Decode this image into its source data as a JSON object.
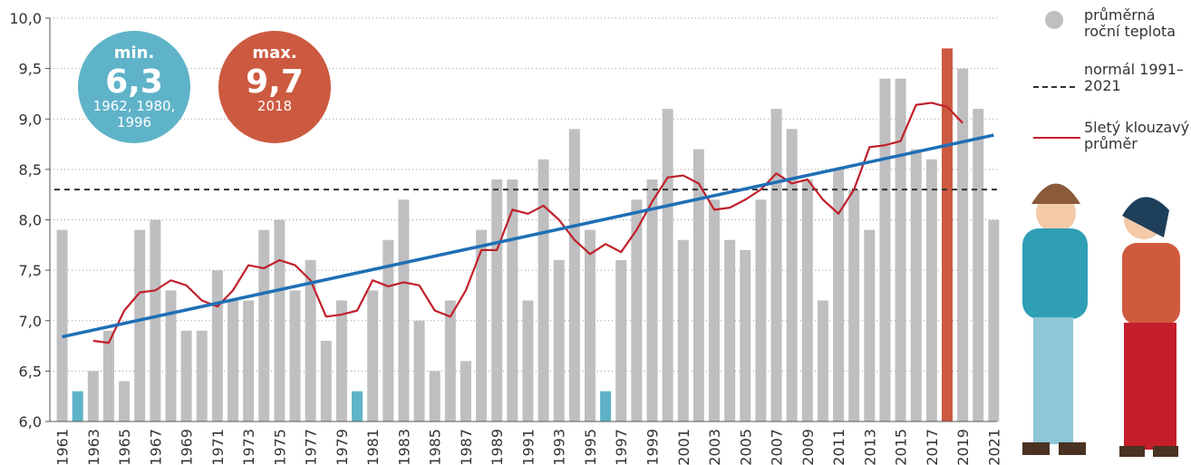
{
  "chart_data": {
    "type": "bar",
    "categories": [
      "1961",
      null,
      "1963",
      null,
      "1965",
      null,
      "1967",
      null,
      "1969",
      null,
      "1971",
      null,
      "1973",
      null,
      "1975",
      null,
      "1977",
      null,
      "1979",
      null,
      "1981",
      null,
      "1983",
      null,
      "1985",
      null,
      "1987",
      null,
      "1989",
      null,
      "1991",
      null,
      "1993",
      null,
      "1995",
      null,
      "1997",
      null,
      "1999",
      null,
      "2001",
      null,
      "2003",
      null,
      "2005",
      null,
      "2007",
      null,
      "2009",
      null,
      "2011",
      null,
      "2013",
      null,
      "2015",
      null,
      "2017",
      null,
      "2019",
      null,
      "2021"
    ],
    "series": [
      {
        "name": "průměrná roční teplota",
        "color": "#bfbfc1",
        "colors": [
          "#bfbfc1",
          "#5fb3c8",
          "#bfbfc1",
          "#bfbfc1",
          "#bfbfc1",
          "#bfbfc1",
          "#bfbfc1",
          "#bfbfc1",
          "#bfbfc1",
          "#bfbfc1",
          "#bfbfc1",
          "#bfbfc1",
          "#bfbfc1",
          "#bfbfc1",
          "#bfbfc1",
          "#bfbfc1",
          "#bfbfc1",
          "#bfbfc1",
          "#bfbfc1",
          "#5fb3c8",
          "#bfbfc1",
          "#bfbfc1",
          "#bfbfc1",
          "#bfbfc1",
          "#bfbfc1",
          "#bfbfc1",
          "#bfbfc1",
          "#bfbfc1",
          "#bfbfc1",
          "#bfbfc1",
          "#bfbfc1",
          "#bfbfc1",
          "#bfbfc1",
          "#bfbfc1",
          "#bfbfc1",
          "#5fb3c8",
          "#bfbfc1",
          "#bfbfc1",
          "#bfbfc1",
          "#bfbfc1",
          "#bfbfc1",
          "#bfbfc1",
          "#bfbfc1",
          "#bfbfc1",
          "#bfbfc1",
          "#bfbfc1",
          "#bfbfc1",
          "#bfbfc1",
          "#bfbfc1",
          "#bfbfc1",
          "#bfbfc1",
          "#bfbfc1",
          "#bfbfc1",
          "#bfbfc1",
          "#bfbfc1",
          "#bfbfc1",
          "#bfbfc1",
          "#cc5a40",
          "#bfbfc1",
          "#bfbfc1",
          "#bfbfc1"
        ],
        "values": [
          7.9,
          6.3,
          6.5,
          6.9,
          6.4,
          7.9,
          8.0,
          7.3,
          6.9,
          6.9,
          7.5,
          7.2,
          7.2,
          7.9,
          8.0,
          7.3,
          7.6,
          6.8,
          7.2,
          6.3,
          7.3,
          7.8,
          8.2,
          7.0,
          6.5,
          7.2,
          6.6,
          7.9,
          8.4,
          8.4,
          7.2,
          8.6,
          7.6,
          8.9,
          7.9,
          6.3,
          7.6,
          8.2,
          8.4,
          9.1,
          7.8,
          8.7,
          8.2,
          7.8,
          7.7,
          8.2,
          9.1,
          8.9,
          8.4,
          7.2,
          8.5,
          8.3,
          7.9,
          9.4,
          9.4,
          8.7,
          8.6,
          9.7,
          9.5,
          9.1,
          8.0
        ]
      },
      {
        "name": "normál 1991–2021",
        "type": "hline",
        "color": "#333333",
        "value": 8.3
      },
      {
        "name": "5letý klouzavý průměr",
        "type": "line",
        "color": "#c0202a",
        "values": [
          null,
          null,
          6.8,
          6.78,
          7.1,
          7.28,
          7.3,
          7.4,
          7.35,
          7.2,
          7.14,
          7.3,
          7.55,
          7.52,
          7.6,
          7.55,
          7.4,
          7.04,
          7.06,
          7.1,
          7.4,
          7.34,
          7.38,
          7.35,
          7.1,
          7.04,
          7.3,
          7.7,
          7.7,
          8.1,
          8.06,
          8.14,
          8.0,
          7.8,
          7.66,
          7.76,
          7.68,
          7.9,
          8.18,
          8.42,
          8.44,
          8.36,
          8.1,
          8.12,
          8.2,
          8.3,
          8.46,
          8.36,
          8.4,
          8.2,
          8.06,
          8.3,
          8.72,
          8.74,
          8.78,
          9.14,
          9.16,
          9.12,
          8.96,
          null,
          null
        ]
      }
    ],
    "trend": {
      "color": "#1f6fb5",
      "x": [
        1961,
        2021
      ],
      "values": [
        6.84,
        8.84
      ]
    },
    "ylim": [
      6,
      10
    ],
    "yticks": [
      {
        "value": 6,
        "label": "6,0"
      },
      {
        "value": 6.5,
        "label": "6,5"
      },
      {
        "value": 7,
        "label": "7,0"
      },
      {
        "value": 7.5,
        "label": "7,5"
      },
      {
        "value": 8,
        "label": "8,0"
      },
      {
        "value": 8.5,
        "label": "8,5"
      },
      {
        "value": 9,
        "label": "9,0"
      },
      {
        "value": 9.5,
        "label": "9,5"
      },
      {
        "value": 10,
        "label": "10,0"
      }
    ],
    "grid": true,
    "annotations": [
      {
        "color": "#5fb3c8",
        "head": "min.",
        "value": "6,3",
        "note": [
          "1962, 1980,",
          "1996"
        ]
      },
      {
        "color": "#cc5a40",
        "head": "max.",
        "value": "9,7",
        "note": [
          "2018"
        ]
      }
    ]
  }
}
